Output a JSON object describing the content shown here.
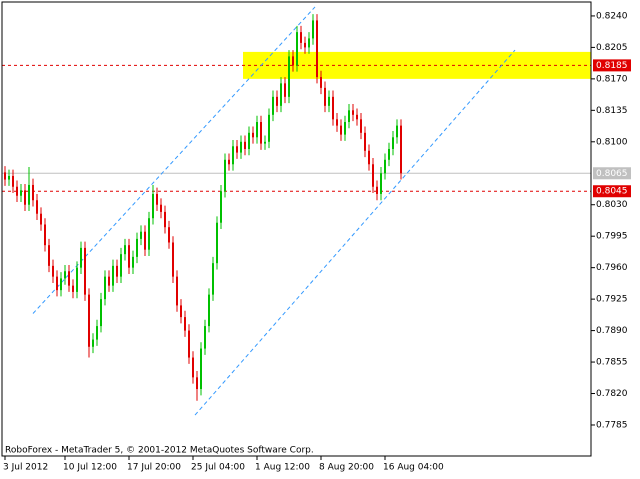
{
  "chart_data": {
    "type": "candlestick",
    "watermark": "RoboForex - MetaTrader 5, © 2001-2012 MetaQuotes Software Corp.",
    "up_color": "#00c000",
    "down_color": "#e00000",
    "xlim": [
      -0.75,
      146.5
    ],
    "xticks": [
      {
        "value": 0,
        "label": "3 Jul 2012"
      },
      {
        "value": 15,
        "label": "10 Jul 12:00"
      },
      {
        "value": 31,
        "label": "17 Jul 20:00"
      },
      {
        "value": 47,
        "label": "25 Jul 04:00"
      },
      {
        "value": 63,
        "label": "1 Aug 12:00"
      },
      {
        "value": 79,
        "label": "8 Aug 20:00"
      },
      {
        "value": 95,
        "label": "16 Aug 04:00"
      }
    ],
    "ylim": [
      0.77505,
      0.82555
    ],
    "yticks": [
      {
        "value": 0.824,
        "label": "0.8240"
      },
      {
        "value": 0.8205,
        "label": "0.8205"
      },
      {
        "value": 0.817,
        "label": "0.8170"
      },
      {
        "value": 0.8135,
        "label": "0.8135"
      },
      {
        "value": 0.81,
        "label": "0.8100"
      },
      {
        "value": 0.803,
        "label": "0.8030"
      },
      {
        "value": 0.7995,
        "label": "0.7995"
      },
      {
        "value": 0.796,
        "label": "0.7960"
      },
      {
        "value": 0.7925,
        "label": "0.7925"
      },
      {
        "value": 0.789,
        "label": "0.7890"
      },
      {
        "value": 0.7855,
        "label": "0.7855"
      },
      {
        "value": 0.782,
        "label": "0.7820"
      },
      {
        "value": 0.7785,
        "label": "0.7785"
      }
    ],
    "zone": {
      "x": [
        59.5,
        146.5
      ],
      "y": [
        0.817,
        0.82
      ],
      "color": "#ffff00"
    },
    "levels": [
      {
        "value": 0.8185,
        "label": "0.8185",
        "color": "#e00000"
      },
      {
        "value": 0.8045,
        "label": "0.8045",
        "color": "#e00000"
      }
    ],
    "bid": {
      "value": 0.8065,
      "label": "0.8065",
      "color": "#c0c0c0"
    },
    "channel_color": "#3399ff",
    "channel": [
      {
        "x": [
          7,
          77.5
        ],
        "y": [
          0.7909,
          0.825
        ]
      },
      {
        "x": [
          47.5,
          127.5
        ],
        "y": [
          0.7796,
          0.8202
        ]
      }
    ],
    "open": [
      0.8066,
      0.8058,
      0.8062,
      0.805,
      0.804,
      0.8046,
      0.803,
      0.8052,
      0.8035,
      0.802,
      0.8008,
      0.7985,
      0.7962,
      0.795,
      0.7935,
      0.7948,
      0.7956,
      0.794,
      0.7933,
      0.796,
      0.7982,
      0.793,
      0.7872,
      0.788,
      0.7895,
      0.7925,
      0.795,
      0.794,
      0.7962,
      0.795,
      0.7975,
      0.7985,
      0.796,
      0.7972,
      0.7992,
      0.8,
      0.798,
      0.8015,
      0.8042,
      0.803,
      0.8022,
      0.8005,
      0.7988,
      0.795,
      0.7918,
      0.7905,
      0.789,
      0.786,
      0.7838,
      0.7825,
      0.787,
      0.7895,
      0.793,
      0.7965,
      0.801,
      0.8045,
      0.808,
      0.8075,
      0.8095,
      0.8088,
      0.81,
      0.8092,
      0.811,
      0.8105,
      0.8122,
      0.8098,
      0.81,
      0.813,
      0.815,
      0.814,
      0.8165,
      0.815,
      0.8195,
      0.8185,
      0.8222,
      0.821,
      0.8205,
      0.8215,
      0.8235,
      0.8172,
      0.816,
      0.814,
      0.815,
      0.8125,
      0.8118,
      0.8108,
      0.8122,
      0.8135,
      0.813,
      0.8125,
      0.811,
      0.809,
      0.8075,
      0.805,
      0.8042,
      0.8065,
      0.808,
      0.8092,
      0.8105,
      0.8118
    ],
    "high": [
      0.8073,
      0.8069,
      0.8069,
      0.8057,
      0.8053,
      0.8053,
      0.8072,
      0.8059,
      0.8042,
      0.8027,
      0.8015,
      0.7992,
      0.7969,
      0.7957,
      0.7955,
      0.7963,
      0.7963,
      0.7947,
      0.7967,
      0.7989,
      0.7989,
      0.7937,
      0.7887,
      0.7902,
      0.7932,
      0.7957,
      0.7957,
      0.7969,
      0.7969,
      0.7982,
      0.7992,
      0.7992,
      0.7979,
      0.7999,
      0.8007,
      0.8007,
      0.8022,
      0.8052,
      0.8049,
      0.8037,
      0.8029,
      0.8012,
      0.7995,
      0.7957,
      0.7925,
      0.7912,
      0.7897,
      0.7867,
      0.7845,
      0.7877,
      0.7902,
      0.7937,
      0.7972,
      0.8017,
      0.8052,
      0.8087,
      0.8087,
      0.8102,
      0.8102,
      0.8107,
      0.8107,
      0.8117,
      0.8117,
      0.8129,
      0.8129,
      0.8107,
      0.8137,
      0.8157,
      0.8157,
      0.8172,
      0.8172,
      0.8202,
      0.8202,
      0.8229,
      0.8229,
      0.8217,
      0.8222,
      0.8242,
      0.8242,
      0.8179,
      0.8167,
      0.8157,
      0.8157,
      0.8132,
      0.8125,
      0.8129,
      0.8142,
      0.8142,
      0.8137,
      0.8132,
      0.8117,
      0.8097,
      0.8082,
      0.8057,
      0.8072,
      0.8087,
      0.8099,
      0.8112,
      0.8125,
      0.8125
    ],
    "low": [
      0.8051,
      0.8051,
      0.8043,
      0.8033,
      0.8033,
      0.8023,
      0.8023,
      0.8028,
      0.8013,
      0.8001,
      0.7978,
      0.7955,
      0.7943,
      0.7928,
      0.7928,
      0.7941,
      0.7933,
      0.7926,
      0.7926,
      0.7953,
      0.7923,
      0.786,
      0.7865,
      0.7873,
      0.7888,
      0.7918,
      0.7933,
      0.7933,
      0.7943,
      0.7943,
      0.7968,
      0.7953,
      0.7953,
      0.7965,
      0.7985,
      0.7973,
      0.7973,
      0.8008,
      0.8023,
      0.8015,
      0.7998,
      0.7981,
      0.7943,
      0.7911,
      0.7898,
      0.7883,
      0.7853,
      0.7831,
      0.7812,
      0.7818,
      0.7863,
      0.7888,
      0.7923,
      0.7958,
      0.8003,
      0.8038,
      0.8068,
      0.8068,
      0.8081,
      0.8081,
      0.8085,
      0.8085,
      0.8098,
      0.8098,
      0.8091,
      0.8091,
      0.8093,
      0.8123,
      0.8133,
      0.8133,
      0.8143,
      0.8143,
      0.8178,
      0.8178,
      0.8203,
      0.8198,
      0.8198,
      0.8208,
      0.8165,
      0.8153,
      0.8133,
      0.8133,
      0.8118,
      0.8111,
      0.8101,
      0.8101,
      0.8115,
      0.8123,
      0.8118,
      0.8103,
      0.8083,
      0.8068,
      0.8043,
      0.8035,
      0.8035,
      0.8058,
      0.8073,
      0.8085,
      0.8098,
      0.8058
    ],
    "close": [
      0.8058,
      0.8062,
      0.805,
      0.804,
      0.8046,
      0.803,
      0.8052,
      0.8035,
      0.802,
      0.8008,
      0.7985,
      0.7962,
      0.795,
      0.7935,
      0.7948,
      0.7956,
      0.794,
      0.7933,
      0.796,
      0.7982,
      0.793,
      0.7872,
      0.788,
      0.7895,
      0.7925,
      0.795,
      0.794,
      0.7962,
      0.795,
      0.7975,
      0.7985,
      0.796,
      0.7972,
      0.7992,
      0.8,
      0.798,
      0.8015,
      0.8042,
      0.803,
      0.8022,
      0.8005,
      0.7988,
      0.795,
      0.7918,
      0.7905,
      0.789,
      0.786,
      0.7838,
      0.7825,
      0.787,
      0.7895,
      0.793,
      0.7965,
      0.801,
      0.8045,
      0.808,
      0.8075,
      0.8095,
      0.8088,
      0.81,
      0.8092,
      0.811,
      0.8105,
      0.8122,
      0.8098,
      0.81,
      0.813,
      0.815,
      0.814,
      0.8165,
      0.815,
      0.8195,
      0.8185,
      0.8222,
      0.821,
      0.8205,
      0.8215,
      0.8235,
      0.8172,
      0.816,
      0.814,
      0.815,
      0.8125,
      0.8118,
      0.8108,
      0.8122,
      0.8135,
      0.813,
      0.8125,
      0.811,
      0.809,
      0.8075,
      0.805,
      0.8042,
      0.8065,
      0.808,
      0.8092,
      0.8105,
      0.8118,
      0.8065
    ]
  }
}
